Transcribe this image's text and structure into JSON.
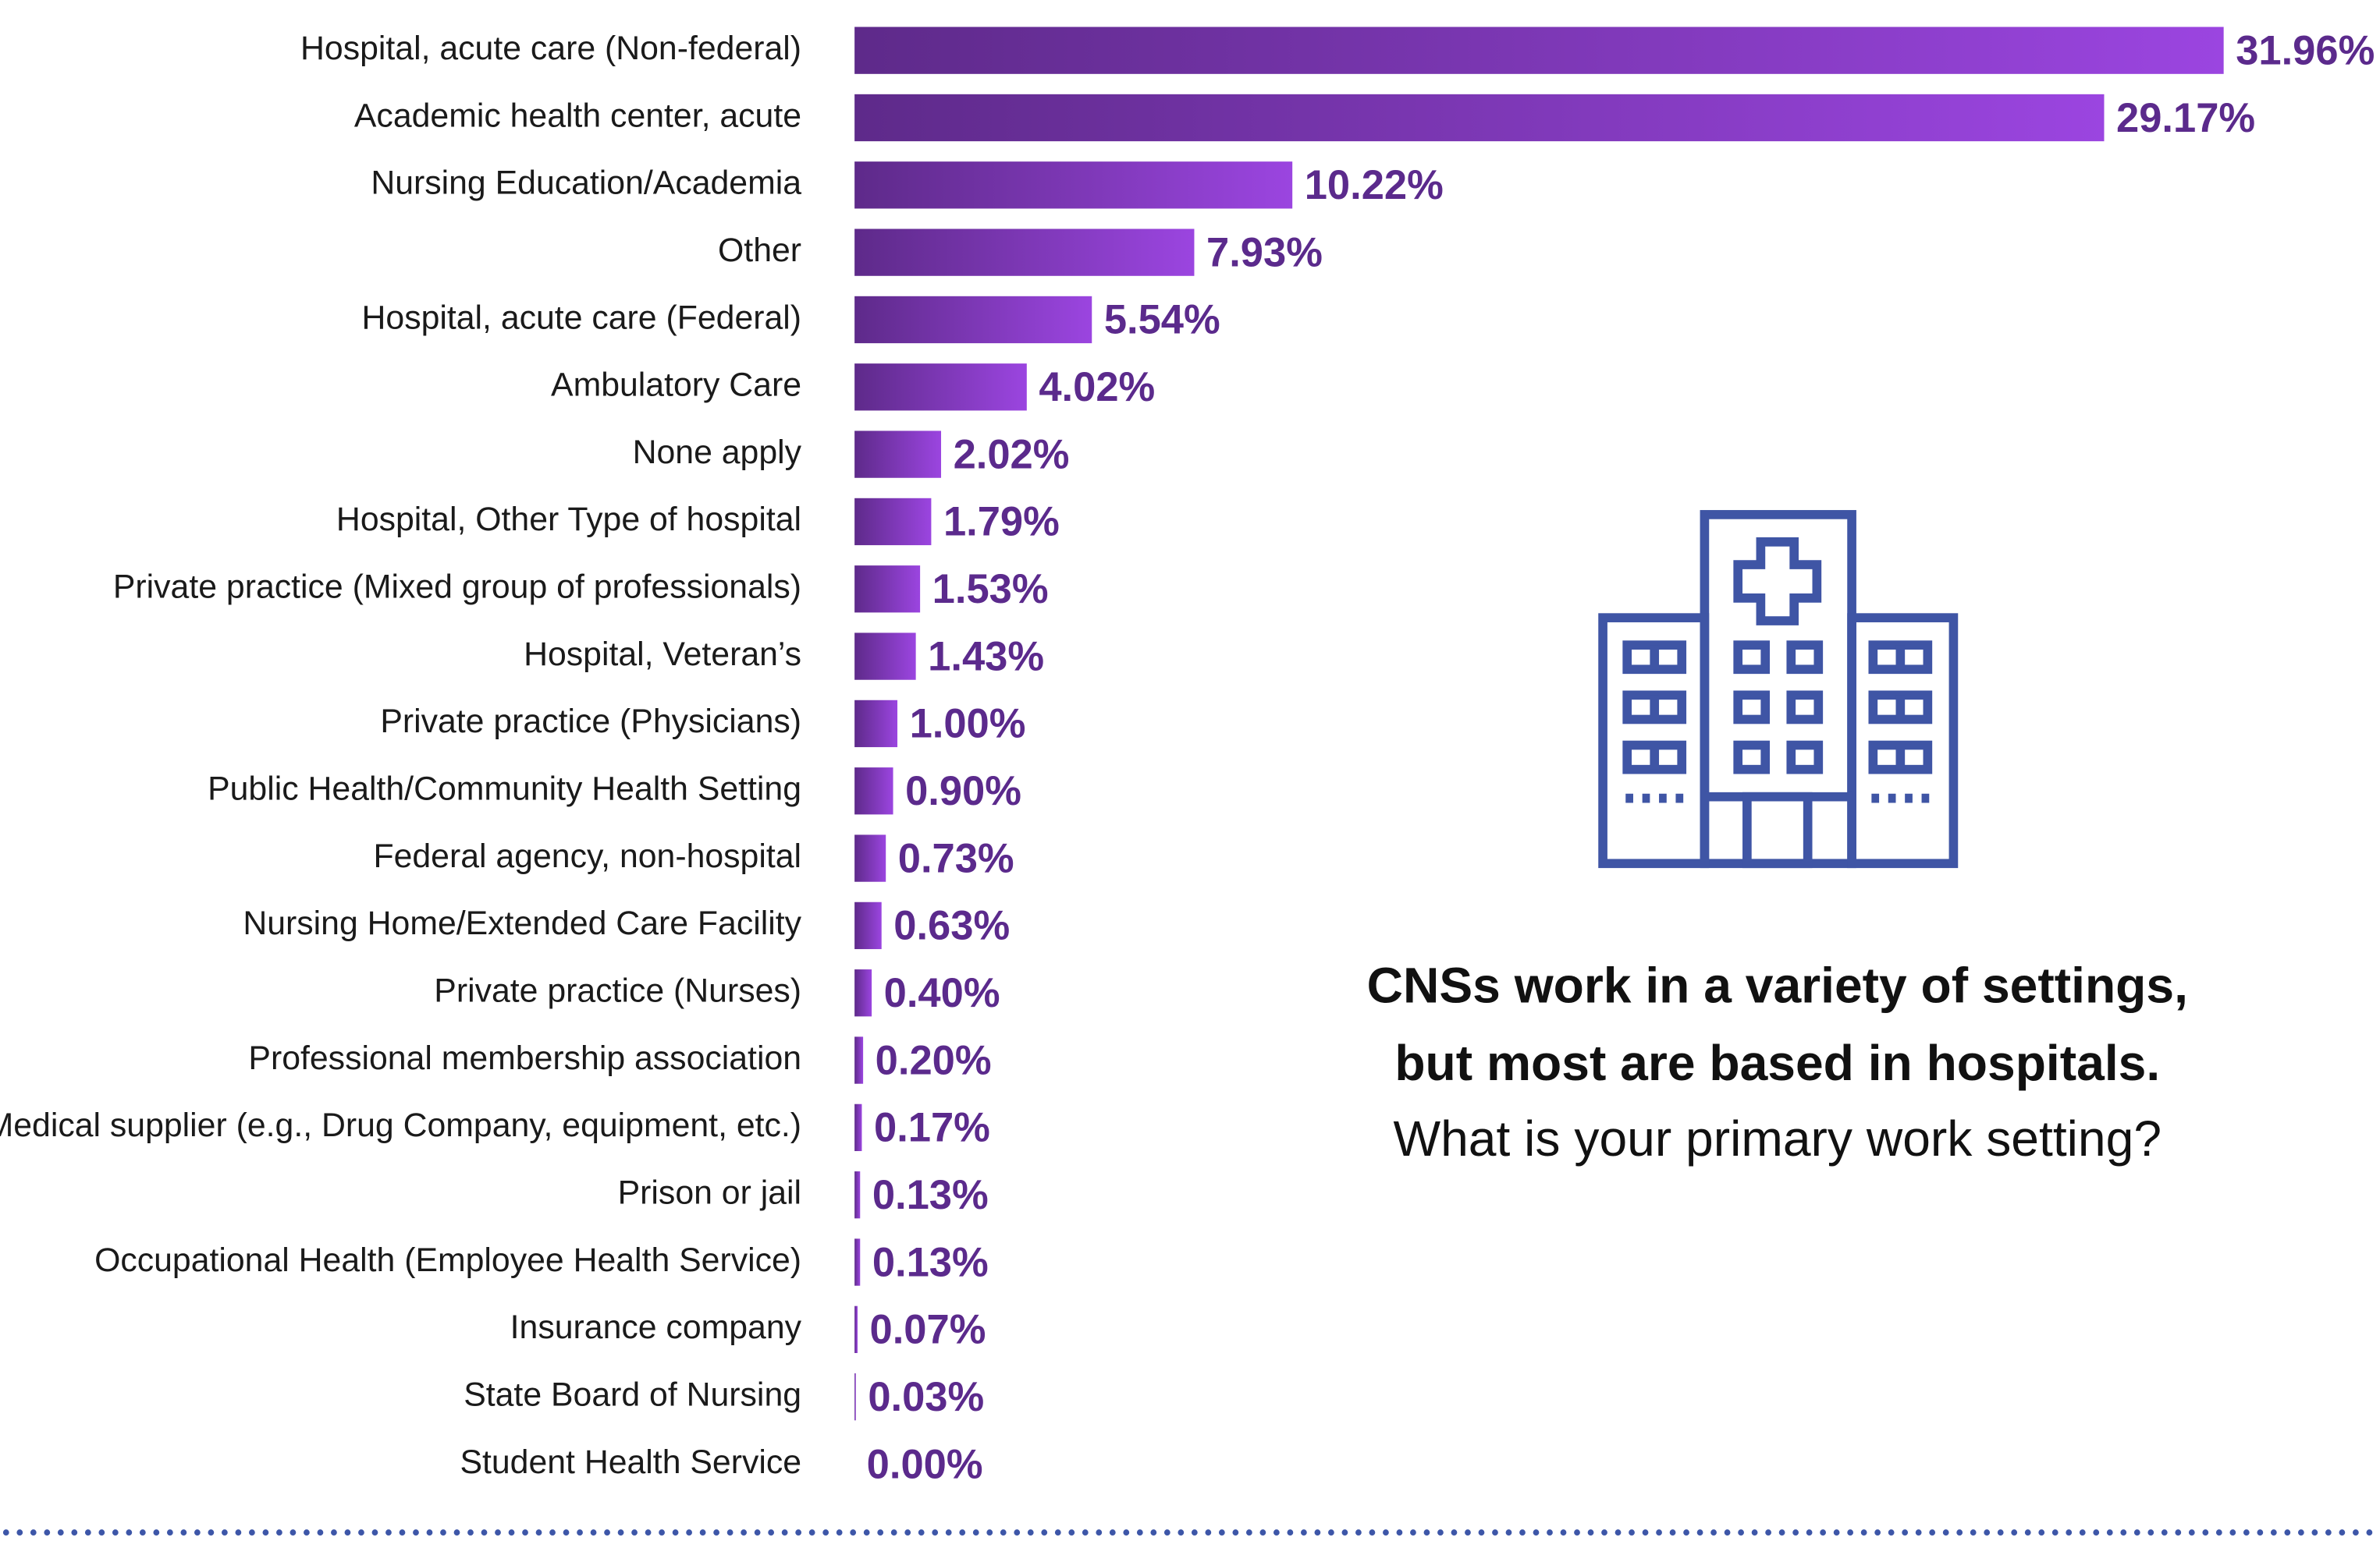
{
  "chart_data": {
    "type": "bar",
    "orientation": "horizontal",
    "categories": [
      "Hospital, acute care (Non-federal)",
      "Academic health center, acute",
      "Nursing Education/Academia",
      "Other",
      "Hospital, acute care (Federal)",
      "Ambulatory Care",
      "None apply",
      "Hospital, Other Type of hospital",
      "Private practice (Mixed group of professionals)",
      "Hospital, Veteran’s",
      "Private practice (Physicians)",
      "Public Health/Community Health Setting",
      "Federal agency, non-hospital",
      "Nursing Home/Extended Care Facility",
      "Private practice (Nurses)",
      "Professional membership association",
      "Medical supplier (e.g., Drug Company, equipment, etc.)",
      "Prison or jail",
      "Occupational Health (Employee Health Service)",
      "Insurance company",
      "State Board of Nursing",
      "Student Health Service"
    ],
    "values": [
      31.96,
      29.17,
      10.22,
      7.93,
      5.54,
      4.02,
      2.02,
      1.79,
      1.53,
      1.43,
      1.0,
      0.9,
      0.73,
      0.63,
      0.4,
      0.2,
      0.17,
      0.13,
      0.13,
      0.07,
      0.03,
      0.0
    ],
    "value_labels": [
      "31.96%",
      "29.17%",
      "10.22%",
      "7.93%",
      "5.54%",
      "4.02%",
      "2.02%",
      "1.79%",
      "1.53%",
      "1.43%",
      "1.00%",
      "0.90%",
      "0.73%",
      "0.63%",
      "0.40%",
      "0.20%",
      "0.17%",
      "0.13%",
      "0.13%",
      "0.07%",
      "0.03%",
      "0.00%"
    ],
    "color_start": "#5e2a8a",
    "color_end": "#9b45e0",
    "annotation": {
      "bold_lines": [
        "CNSs work in a variety of settings,",
        "but most are based in hospitals."
      ],
      "question": "What is your primary work setting?"
    }
  }
}
